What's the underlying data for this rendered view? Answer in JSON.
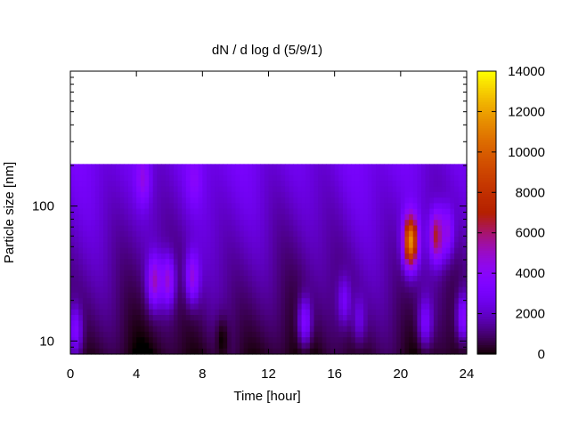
{
  "chart_data": {
    "type": "heatmap",
    "title": "dN / d log d (5/9/1)",
    "xlabel": "Time [hour]",
    "ylabel": "Particle size [nm]",
    "xlim": [
      0,
      24
    ],
    "x_ticks": [
      "0",
      "4",
      "8",
      "12",
      "16",
      "20",
      "24"
    ],
    "y_scale": "log",
    "ylim": [
      8,
      1000
    ],
    "y_ticks": [
      "10",
      "100"
    ],
    "y_data_range": [
      8,
      205
    ],
    "colorbar": {
      "label_ticks": [
        "0",
        "2000",
        "4000",
        "6000",
        "8000",
        "10000",
        "12000",
        "14000"
      ],
      "range": [
        0,
        14000
      ],
      "palette": "black-purple-red-orange-yellow"
    },
    "grid": false,
    "features": [
      {
        "time": 20.6,
        "size": 55,
        "value": 11500
      },
      {
        "time": 22.2,
        "size": 60,
        "value": 7000
      },
      {
        "time": 22.8,
        "size": 65,
        "value": 4500
      },
      {
        "time": 5.1,
        "size": 28,
        "value": 5200
      },
      {
        "time": 5.9,
        "size": 28,
        "value": 4800
      },
      {
        "time": 7.4,
        "size": 30,
        "value": 4600
      },
      {
        "time": 4.4,
        "size": 160,
        "value": 4500
      },
      {
        "time": 7.5,
        "size": 160,
        "value": 4000
      },
      {
        "time": 0.3,
        "size": 12,
        "value": 3500
      },
      {
        "time": 14.2,
        "size": 14,
        "value": 3500
      },
      {
        "time": 16.6,
        "size": 20,
        "value": 3000
      },
      {
        "time": 17.5,
        "size": 15,
        "value": 2500
      },
      {
        "time": 21.5,
        "size": 14,
        "value": 3200
      },
      {
        "time": 23.8,
        "size": 15,
        "value": 3800
      },
      {
        "time": 9.2,
        "size": 10,
        "value": 0
      }
    ]
  }
}
